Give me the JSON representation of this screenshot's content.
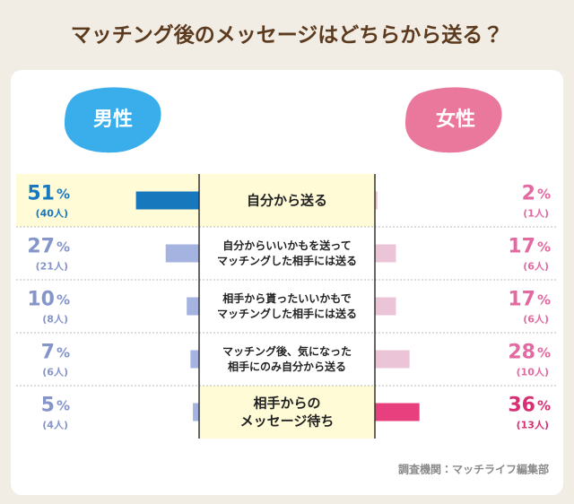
{
  "chart_data": {
    "type": "butterfly",
    "title": "マッチング後のメッセージはどちらから送る？",
    "categories": [
      "自分から送る",
      "自分からいいかもを送って\nマッチングした相手には送る",
      "相手から貰ったいいかもで\nマッチングした相手には送る",
      "マッチング後、気になった\n相手にのみ自分から送る",
      "相手からの\nメッセージ待ち"
    ],
    "series": [
      {
        "name": "男性",
        "color": "#3aaeea",
        "values": [
          51,
          27,
          10,
          7,
          5
        ],
        "value_labels": [
          "51%",
          "27%",
          "10%",
          "7%",
          "5%"
        ],
        "counts": [
          40,
          21,
          8,
          6,
          4
        ],
        "count_labels": [
          "(40人)",
          "(21人)",
          "(8人)",
          "(6人)",
          "(4人)"
        ],
        "bar_colors": [
          "#1878bd",
          "#a4b3df",
          "#a4b3df",
          "#a4b3df",
          "#a4b3df"
        ],
        "label_colors": [
          "#1878bd",
          "#8595c9",
          "#8595c9",
          "#8595c9",
          "#8595c9"
        ]
      },
      {
        "name": "女性",
        "color": "#e9789c",
        "values": [
          2,
          17,
          17,
          28,
          36
        ],
        "value_labels": [
          "2%",
          "17%",
          "17%",
          "28%",
          "36%"
        ],
        "counts": [
          1,
          6,
          6,
          10,
          13
        ],
        "count_labels": [
          "(1人)",
          "(6人)",
          "(6人)",
          "(10人)",
          "(13人)"
        ],
        "bar_colors": [
          "#ecc4d7",
          "#ecc4d7",
          "#ecc4d7",
          "#ecc4d7",
          "#e8407f"
        ],
        "label_colors": [
          "#e26aa0",
          "#e26aa0",
          "#e26aa0",
          "#e26aa0",
          "#d72f72"
        ]
      }
    ],
    "source": "調査機関：マッチライフ編集部"
  }
}
